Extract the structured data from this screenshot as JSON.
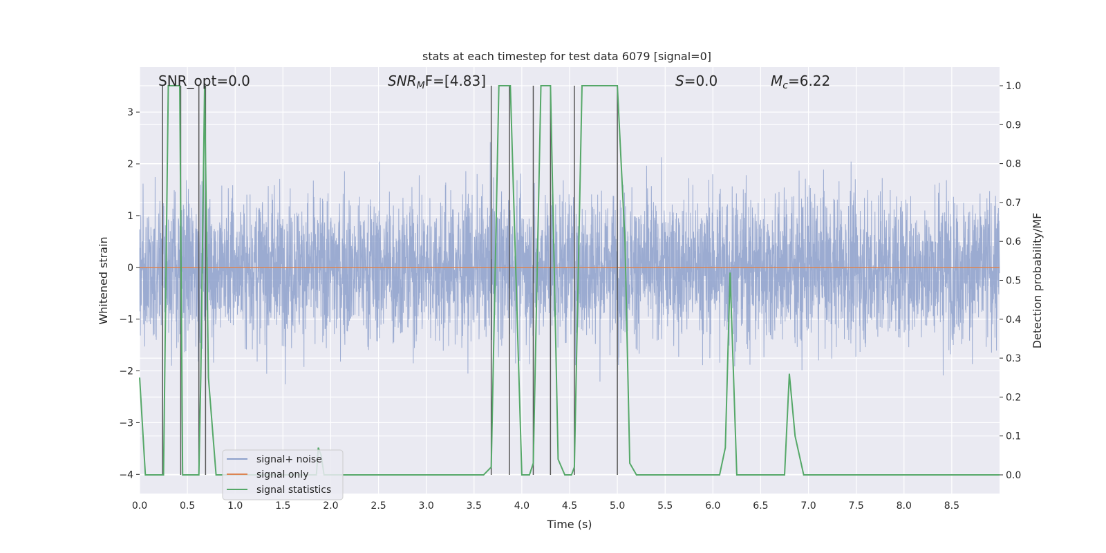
{
  "chart_data": {
    "type": "line",
    "title": "stats at each timestep for test data 6079 [signal=0]",
    "xlabel": "Time (s)",
    "ylabel_left": "Whitened strain",
    "ylabel_right": "Detection probability/MF",
    "xlim": [
      0,
      9.0
    ],
    "ylim_left": [
      -4.37,
      3.87
    ],
    "ylim_right": [
      -0.048,
      1.048
    ],
    "x_ticks": [
      "0.0",
      "0.5",
      "1.0",
      "1.5",
      "2.0",
      "2.5",
      "3.0",
      "3.5",
      "4.0",
      "4.5",
      "5.0",
      "5.5",
      "6.0",
      "6.5",
      "7.0",
      "7.5",
      "8.0",
      "8.5"
    ],
    "y_left_ticks": [
      {
        "value": 3,
        "label": "3"
      },
      {
        "value": 2,
        "label": "2"
      },
      {
        "value": 1,
        "label": "1"
      },
      {
        "value": 0,
        "label": "0"
      },
      {
        "value": -1,
        "label": "−1"
      },
      {
        "value": -2,
        "label": "−2"
      },
      {
        "value": -3,
        "label": "−3"
      },
      {
        "value": -4,
        "label": "−4"
      }
    ],
    "y_right_ticks": [
      "0.0",
      "0.1",
      "0.2",
      "0.3",
      "0.4",
      "0.5",
      "0.6",
      "0.7",
      "0.8",
      "0.9",
      "1.0"
    ],
    "annotations": [
      {
        "text": "SNR_opt=0.0",
        "x": 0.2
      },
      {
        "prefix": "SNR",
        "sub": "M",
        "suffix": "F=[4.83]",
        "x": 2.6
      },
      {
        "prefix": "S",
        "sub": "",
        "suffix": "=0.0",
        "x": 5.6
      },
      {
        "prefix": "M",
        "sub": "c",
        "suffix": "=6.22",
        "x": 6.6
      }
    ],
    "legend": {
      "placement": "lower-left",
      "entries": [
        {
          "label": "signal+ noise",
          "color": "#8da0cb"
        },
        {
          "label": "signal only",
          "color": "#dd8452"
        },
        {
          "label": "signal statistics",
          "color": "#55a868"
        }
      ]
    },
    "series": [
      {
        "name": "signal+ noise",
        "color": "#8da0cb",
        "description_hidden": true,
        "noise_amplitude": 1.0,
        "sample_rate": 500
      },
      {
        "name": "signal only",
        "color": "#dd8452",
        "x": [
          0,
          9.0
        ],
        "y": [
          0,
          0
        ]
      },
      {
        "name": "signal statistics",
        "color": "#55a868",
        "x": [
          0.0,
          0.06,
          0.25,
          0.3,
          0.42,
          0.45,
          0.62,
          0.64,
          0.68,
          0.72,
          0.8,
          0.82,
          1.85,
          1.87,
          1.9,
          1.93,
          3.6,
          3.68,
          3.76,
          3.88,
          4.0,
          4.08,
          4.12,
          4.2,
          4.3,
          4.38,
          4.45,
          4.52,
          4.55,
          4.63,
          5.0,
          5.08,
          5.13,
          5.2,
          6.07,
          6.13,
          6.18,
          6.25,
          6.75,
          6.8,
          6.86,
          6.95,
          9.0
        ],
        "y": [
          0.25,
          0.0,
          0.0,
          1.0,
          1.0,
          0.0,
          0.0,
          0.25,
          1.0,
          0.25,
          0.0,
          0.0,
          0.0,
          0.07,
          0.05,
          0.0,
          0.0,
          0.02,
          1.0,
          1.0,
          0.0,
          0.0,
          0.03,
          1.0,
          1.0,
          0.04,
          0.0,
          0.0,
          0.02,
          1.0,
          1.0,
          0.6,
          0.03,
          0.0,
          0.0,
          0.07,
          0.52,
          0.0,
          0.0,
          0.26,
          0.1,
          0.0,
          0.0
        ]
      }
    ],
    "vertical_lines": [
      0.24,
      0.43,
      0.62,
      0.69,
      3.68,
      3.87,
      4.12,
      4.3,
      4.55,
      5.0
    ],
    "grid": true
  }
}
